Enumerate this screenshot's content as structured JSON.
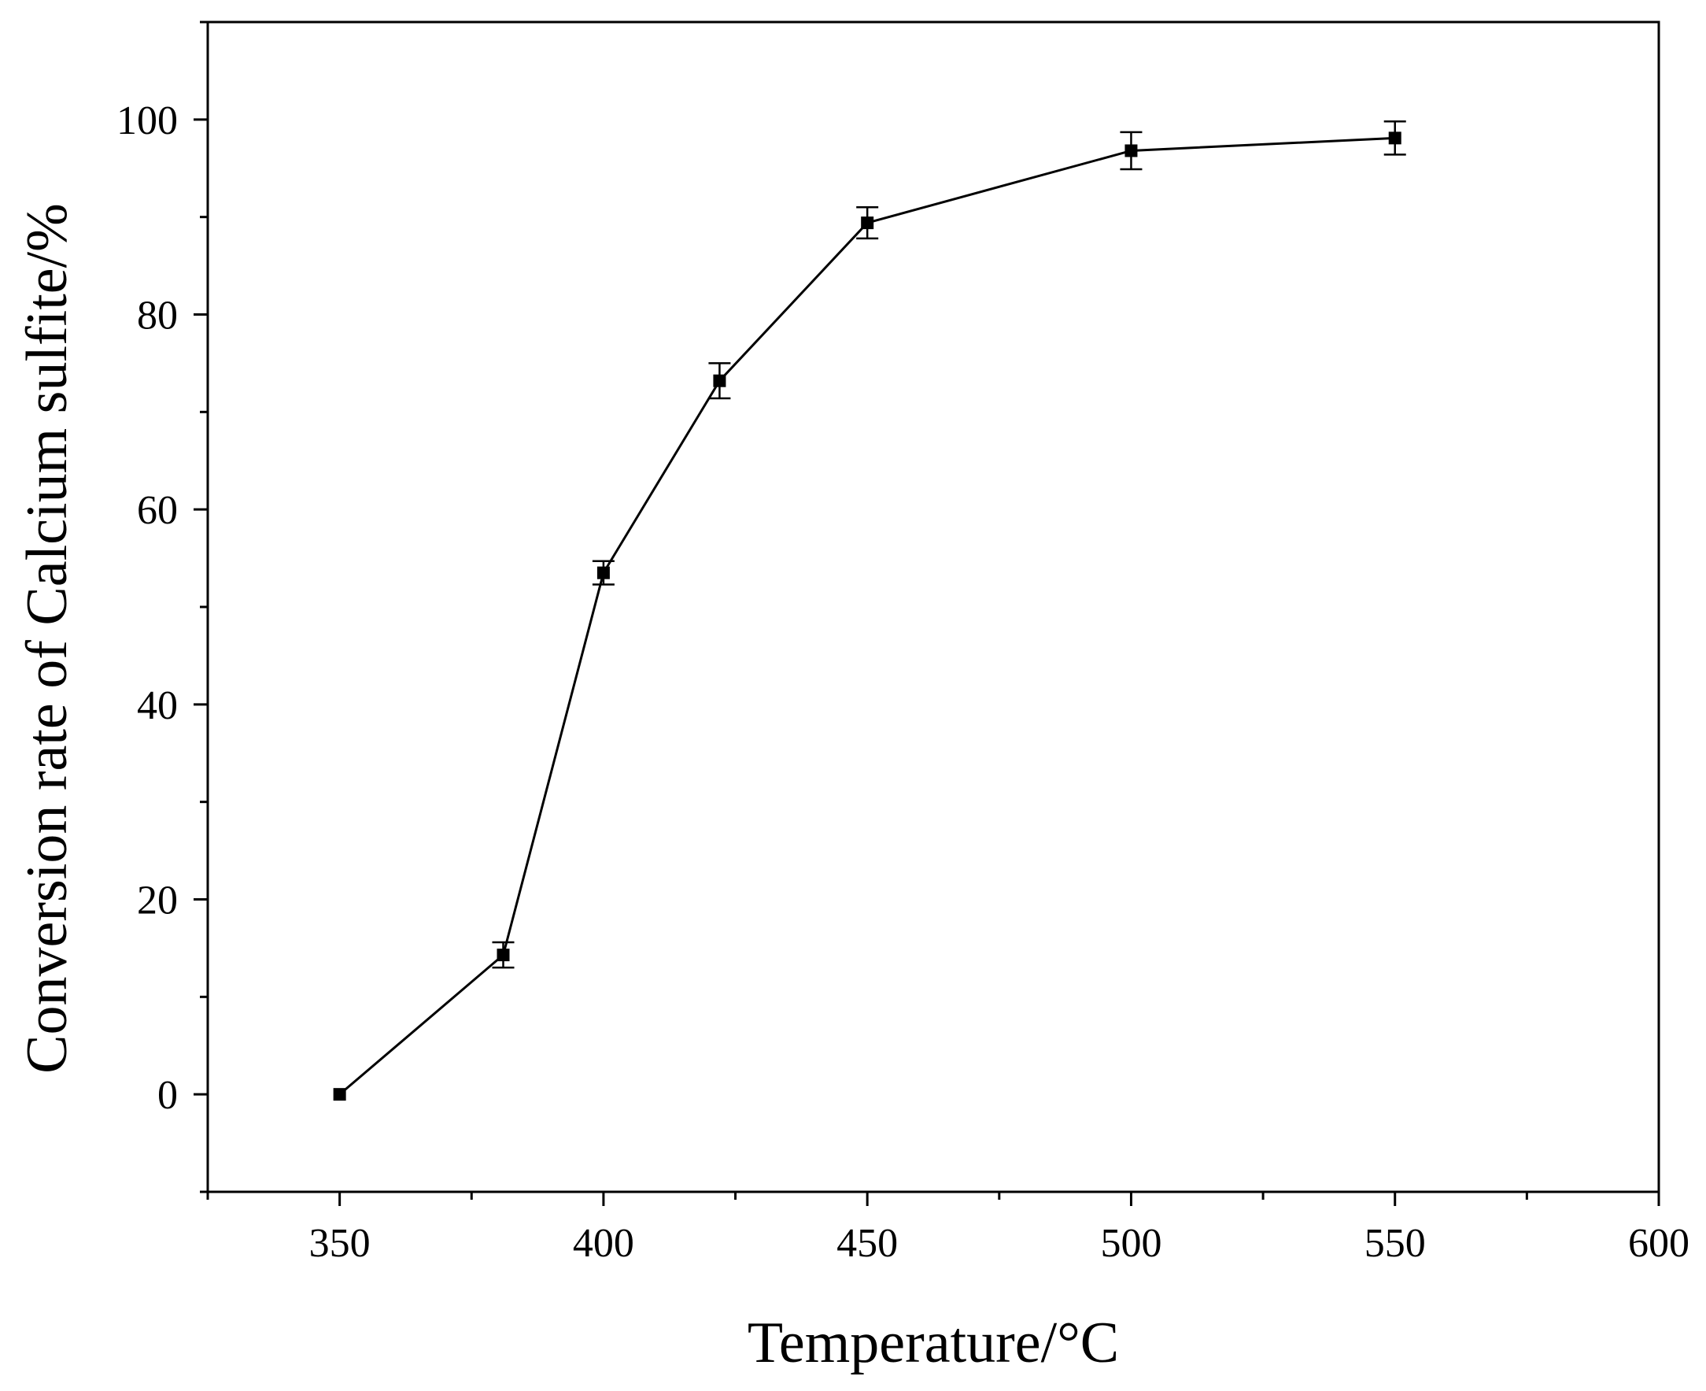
{
  "chart_data": {
    "type": "line",
    "title": "",
    "xlabel": "Temperature/°C",
    "ylabel": "Conversion rate of Calcium sulfite/%",
    "xlim": [
      325,
      600
    ],
    "ylim": [
      -10,
      110
    ],
    "x_ticks": [
      "350",
      "400",
      "450",
      "500",
      "550",
      "600"
    ],
    "y_ticks": [
      "0",
      "20",
      "40",
      "60",
      "80",
      "100"
    ],
    "grid": false,
    "legend": "none",
    "series": [
      {
        "x": [
          350,
          381,
          400,
          422,
          450,
          500,
          550
        ],
        "y": [
          0,
          14.3,
          53.5,
          73.2,
          89.4,
          96.8,
          98.1
        ],
        "error": [
          0,
          1.3,
          1.2,
          1.8,
          1.6,
          1.9,
          1.7
        ],
        "color": "#000000",
        "marker": "square"
      }
    ]
  }
}
